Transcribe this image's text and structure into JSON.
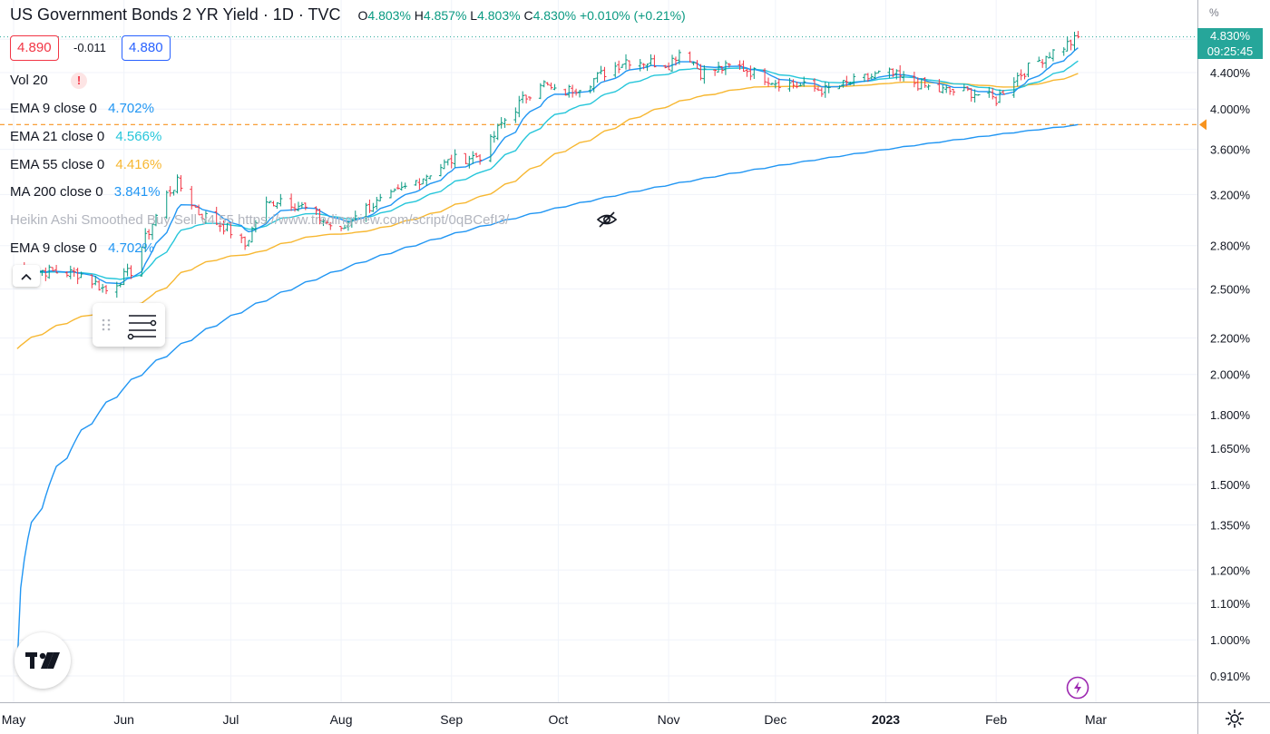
{
  "header": {
    "title": "US Government Bonds 2 YR Yield · 1D · TVC",
    "ohlc": [
      {
        "key": "O",
        "value": "4.803%"
      },
      {
        "key": "H",
        "value": "4.857%"
      },
      {
        "key": "L",
        "value": "4.803%"
      },
      {
        "key": "C",
        "value": "4.830%"
      }
    ],
    "change": "+0.010% (+0.21%)",
    "bid": "4.890",
    "spread": "-0.011",
    "ask": "4.880"
  },
  "legend": [
    {
      "label": "Vol 20",
      "value": "",
      "color": "#131722"
    },
    {
      "label": "EMA 9 close 0",
      "value": "4.702%",
      "color": "#2196f3"
    },
    {
      "label": "EMA 21 close 0",
      "value": "4.566%",
      "color": "#26c6da"
    },
    {
      "label": "EMA 55 close 0",
      "value": "4.416%",
      "color": "#f7b731"
    },
    {
      "label": "MA 200 close 0",
      "value": "3.841%",
      "color": "#2196f3"
    },
    {
      "label": "Heikin Ashi Smoothed Buy Sell v4 55 https://www.tradingview.com/script/0qBCefI3/",
      "value": "",
      "color": "#b2b5be"
    },
    {
      "label": "EMA 9 close 0",
      "value": "4.702%",
      "color": "#2196f3"
    }
  ],
  "price_tag": {
    "price": "4.830%",
    "countdown": "09:25:45",
    "color": "#26a69a"
  },
  "icons": {
    "warning": "!",
    "collapse": "^",
    "eye_off": "eye-off-icon",
    "drag_handle": "drag-handle-icon",
    "objects": "object-tree-icon",
    "logo": "tradingview-logo",
    "lightning": "lightning-icon",
    "settings": "gear-icon"
  },
  "chart_data": {
    "type": "candlestick",
    "scale": "log",
    "y_unit": "%",
    "y_ticks": [
      "4.400%",
      "4.000%",
      "3.600%",
      "3.200%",
      "2.800%",
      "2.500%",
      "2.200%",
      "2.000%",
      "1.800%",
      "1.650%",
      "1.500%",
      "1.350%",
      "1.200%",
      "1.100%",
      "1.000%",
      "0.910%"
    ],
    "y_tick_values": [
      4.4,
      4.0,
      3.6,
      3.2,
      2.8,
      2.5,
      2.2,
      2.0,
      1.8,
      1.65,
      1.5,
      1.35,
      1.2,
      1.1,
      1.0,
      0.91
    ],
    "x_ticks": [
      "May",
      "Jun",
      "Jul",
      "Aug",
      "Sep",
      "Oct",
      "Nov",
      "Dec",
      "2023",
      "Feb",
      "Mar"
    ],
    "x_tick_dates": [
      "2022-05-01",
      "2022-06-01",
      "2022-07-01",
      "2022-08-01",
      "2022-09-01",
      "2022-10-01",
      "2022-11-01",
      "2022-12-01",
      "2023-01-01",
      "2023-02-01",
      "2023-03-01"
    ],
    "start_date": "2022-05-01",
    "last_date": "2023-02-25",
    "last_close": 4.83,
    "horizontal_line": 3.841,
    "colors": {
      "up": "#089981",
      "down": "#f23645",
      "ema9": "#2196f3",
      "ema21": "#26c6da",
      "ema55": "#f7b731",
      "ma200": "#2196f3",
      "hline": "#f7931e"
    },
    "close_keyframes": [
      [
        "2022-05-01",
        2.65
      ],
      [
        "2022-05-10",
        2.62
      ],
      [
        "2022-05-20",
        2.6
      ],
      [
        "2022-05-27",
        2.49
      ],
      [
        "2022-06-03",
        2.62
      ],
      [
        "2022-06-13",
        3.2
      ],
      [
        "2022-06-16",
        3.3
      ],
      [
        "2022-06-22",
        3.05
      ],
      [
        "2022-06-30",
        2.93
      ],
      [
        "2022-07-05",
        2.8
      ],
      [
        "2022-07-10",
        3.1
      ],
      [
        "2022-07-15",
        3.17
      ],
      [
        "2022-07-21",
        3.1
      ],
      [
        "2022-08-01",
        2.9
      ],
      [
        "2022-08-05",
        3.05
      ],
      [
        "2022-08-15",
        3.18
      ],
      [
        "2022-08-25",
        3.37
      ],
      [
        "2022-09-01",
        3.5
      ],
      [
        "2022-09-10",
        3.55
      ],
      [
        "2022-09-15",
        3.85
      ],
      [
        "2022-09-26",
        4.3
      ],
      [
        "2022-10-01",
        4.15
      ],
      [
        "2022-10-10",
        4.3
      ],
      [
        "2022-10-20",
        4.55
      ],
      [
        "2022-11-01",
        4.5
      ],
      [
        "2022-11-05",
        4.7
      ],
      [
        "2022-11-10",
        4.4
      ],
      [
        "2022-11-20",
        4.48
      ],
      [
        "2022-12-01",
        4.3
      ],
      [
        "2022-12-15",
        4.2
      ],
      [
        "2023-01-01",
        4.4
      ],
      [
        "2023-01-15",
        4.2
      ],
      [
        "2023-01-25",
        4.18
      ],
      [
        "2023-02-01",
        4.1
      ],
      [
        "2023-02-05",
        4.3
      ],
      [
        "2023-02-15",
        4.6
      ],
      [
        "2023-02-25",
        4.83
      ]
    ]
  }
}
